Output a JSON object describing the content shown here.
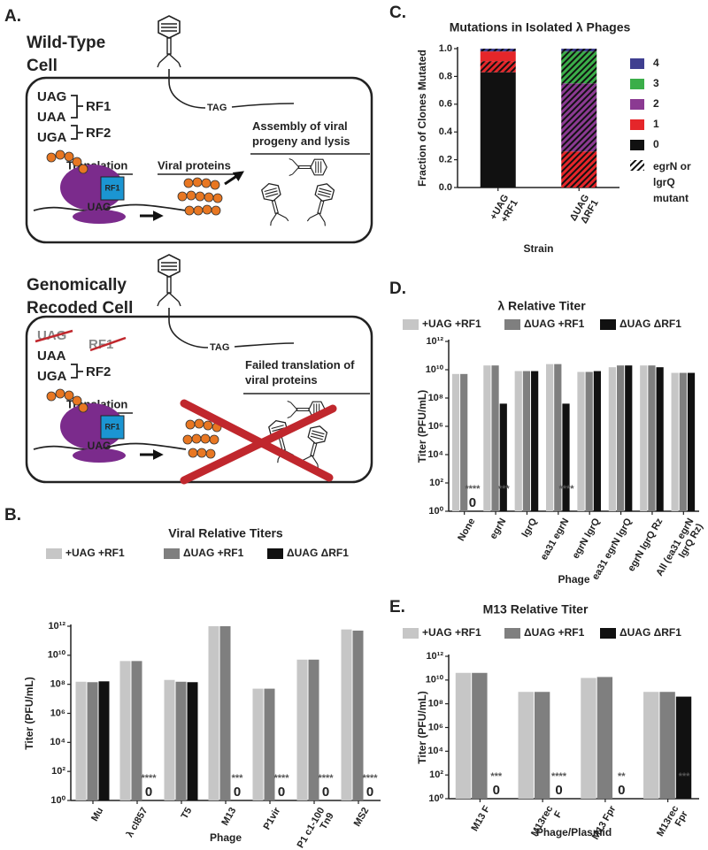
{
  "panel_a": {
    "panel_label": "A.",
    "top": {
      "title": "Wild-Type Cell",
      "codons": [
        "UAG",
        "UAA",
        "UGA"
      ],
      "factors": [
        "RF1",
        "RF2"
      ],
      "tag": "TAG",
      "translation": "Translation",
      "viral_proteins": "Viral proteins",
      "assembly": "Assembly of viral progeny and lysis",
      "ribosome_factor": "RF1",
      "ribosome_codon": "UAG"
    },
    "bottom": {
      "title": "Genomically Recoded Cell",
      "codons": [
        "UAG",
        "UAA",
        "UGA"
      ],
      "factors": [
        "RF1",
        "RF2"
      ],
      "tag": "TAG",
      "translation": "Translation",
      "failed": "Failed translation of viral proteins",
      "ribosome_factor": "RF1",
      "ribosome_codon": "UAG"
    }
  },
  "chart_data": [
    {
      "type": "bar",
      "panel_label": "B.",
      "title": "Viral Relative  Titers",
      "x_label": "Phage",
      "y_label": "Titer (PFU/mL)",
      "log_scale": true,
      "categories": [
        "Mu",
        "λ cI857",
        "T5",
        "M13",
        "P1vir",
        "P1 c1-100 Tn9",
        "MS2"
      ],
      "series": [
        {
          "name": "+UAG +RF1",
          "color": "#c6c6c6",
          "values": [
            150000000.0,
            4000000000.0,
            200000000.0,
            1000000000000.0,
            50000000.0,
            5000000000.0,
            600000000000.0
          ]
        },
        {
          "name": "ΔUAG +RF1",
          "color": "#7f7f7f",
          "values": [
            140000000.0,
            4000000000.0,
            150000000.0,
            1000000000000.0,
            50000000.0,
            5000000000.0,
            500000000000.0
          ]
        },
        {
          "name": "ΔUAG ΔRF1",
          "color": "#111111",
          "values": [
            160000000.0,
            0,
            140000000.0,
            0,
            0,
            0,
            0
          ],
          "value_labels": [
            null,
            "0",
            null,
            "0",
            "0",
            "0",
            "0"
          ],
          "significance": [
            null,
            "****",
            null,
            "***",
            "****",
            "****",
            "****"
          ]
        }
      ],
      "ylim": [
        1,
        1000000000000.0
      ],
      "yticks": [
        {
          "value": 1,
          "label": "10⁰"
        },
        {
          "value": 100,
          "label": "10²"
        },
        {
          "value": 10000,
          "label": "10⁴"
        },
        {
          "value": 1000000.0,
          "label": "10⁶"
        },
        {
          "value": 100000000.0,
          "label": "10⁸"
        },
        {
          "value": 10000000000.0,
          "label": "10¹⁰"
        },
        {
          "value": 1000000000000.0,
          "label": "10¹²"
        }
      ]
    },
    {
      "type": "stacked_bar",
      "panel_label": "C.",
      "title": "Mutations in Isolated λ Phages",
      "x_label": "Strain",
      "y_label": "Fraction of Clones  Mutated",
      "categories": [
        "+UAG +RF1",
        "ΔUAG ΔRF1"
      ],
      "series": [
        {
          "name": "0",
          "color": "#111111",
          "values": [
            0.83,
            0
          ],
          "mutant_values": [
            0,
            0
          ]
        },
        {
          "name": "1",
          "color": "#e5262a",
          "values": [
            0.07,
            0
          ],
          "mutant_values": [
            0.08,
            0.26
          ]
        },
        {
          "name": "2",
          "color": "#8b3a92",
          "values": [
            0,
            0
          ],
          "mutant_values": [
            0,
            0.49
          ]
        },
        {
          "name": "3",
          "color": "#3bae49",
          "values": [
            0,
            0
          ],
          "mutant_values": [
            0,
            0.23
          ]
        },
        {
          "name": "4",
          "color": "#3f3f90",
          "values": [
            0,
            0
          ],
          "mutant_values": [
            0.02,
            0.02
          ]
        }
      ],
      "hatch_label": "egrN or lgrQ mutant",
      "ylim": [
        0,
        1
      ],
      "yticks": [
        {
          "value": 0,
          "label": "0.0"
        },
        0.2,
        0.4,
        0.6,
        0.8,
        {
          "value": 1,
          "label": "1.0"
        }
      ]
    },
    {
      "type": "bar",
      "panel_label": "D.",
      "title": "λ Relative Titer",
      "x_label": "Phage",
      "y_label": "Titer (PFU/mL)",
      "log_scale": true,
      "categories": [
        "None",
        "egrN",
        "lgrQ",
        "ea31 egrN",
        "egrN lgrQ",
        "ea31 egrN lgrQ",
        "egrN lgrQ Rz",
        "All (ea31 egrN lgrQ Rz)"
      ],
      "series": [
        {
          "name": "+UAG +RF1",
          "color": "#c6c6c6",
          "values": [
            5000000000.0,
            20000000000.0,
            8000000000.0,
            25000000000.0,
            7000000000.0,
            15000000000.0,
            20000000000.0,
            6000000000.0
          ]
        },
        {
          "name": "ΔUAG +RF1",
          "color": "#7f7f7f",
          "values": [
            5000000000.0,
            20000000000.0,
            8000000000.0,
            25000000000.0,
            7000000000.0,
            20000000000.0,
            20000000000.0,
            6000000000.0
          ]
        },
        {
          "name": "ΔUAG ΔRF1",
          "color": "#111111",
          "values": [
            0,
            40000000.0,
            8000000000.0,
            40000000.0,
            8000000000.0,
            20000000000.0,
            15000000000.0,
            6000000000.0
          ],
          "value_labels": [
            "0",
            null,
            null,
            null,
            null,
            null,
            null,
            null
          ],
          "significance": [
            "****",
            "***",
            null,
            "****",
            null,
            null,
            null,
            null
          ]
        }
      ],
      "ylim": [
        1,
        1000000000000.0
      ],
      "yticks": [
        {
          "value": 1,
          "label": "10⁰"
        },
        {
          "value": 100,
          "label": "10²"
        },
        {
          "value": 10000,
          "label": "10⁴"
        },
        {
          "value": 1000000.0,
          "label": "10⁶"
        },
        {
          "value": 100000000.0,
          "label": "10⁸"
        },
        {
          "value": 10000000000.0,
          "label": "10¹⁰"
        },
        {
          "value": 1000000000000.0,
          "label": "10¹²"
        }
      ]
    },
    {
      "type": "bar",
      "panel_label": "E.",
      "title": "M13 Relative Titer",
      "x_label": "Phage/Plasmid",
      "y_label": "Titer (PFU/mL)",
      "log_scale": true,
      "categories": [
        "M13 F",
        "M13rec F",
        "M13 Fpr",
        "M13rec Fpr"
      ],
      "series": [
        {
          "name": "+UAG +RF1",
          "color": "#c6c6c6",
          "values": [
            40000000000.0,
            1000000000.0,
            15000000000.0,
            1000000000.0
          ]
        },
        {
          "name": "ΔUAG +RF1",
          "color": "#7f7f7f",
          "values": [
            40000000000.0,
            1000000000.0,
            18000000000.0,
            1000000000.0
          ]
        },
        {
          "name": "ΔUAG ΔRF1",
          "color": "#111111",
          "values": [
            0,
            0,
            0,
            400000000.0
          ],
          "value_labels": [
            "0",
            "0",
            "0",
            null
          ],
          "significance": [
            "***",
            "****",
            "**",
            "***"
          ]
        }
      ],
      "ylim": [
        1,
        1000000000000.0
      ],
      "yticks": [
        {
          "value": 1,
          "label": "10⁰"
        },
        {
          "value": 100,
          "label": "10²"
        },
        {
          "value": 10000,
          "label": "10⁴"
        },
        {
          "value": 1000000.0,
          "label": "10⁶"
        },
        {
          "value": 100000000.0,
          "label": "10⁸"
        },
        {
          "value": 10000000000.0,
          "label": "10¹⁰"
        },
        {
          "value": 1000000000000.0,
          "label": "10¹²"
        }
      ]
    }
  ]
}
